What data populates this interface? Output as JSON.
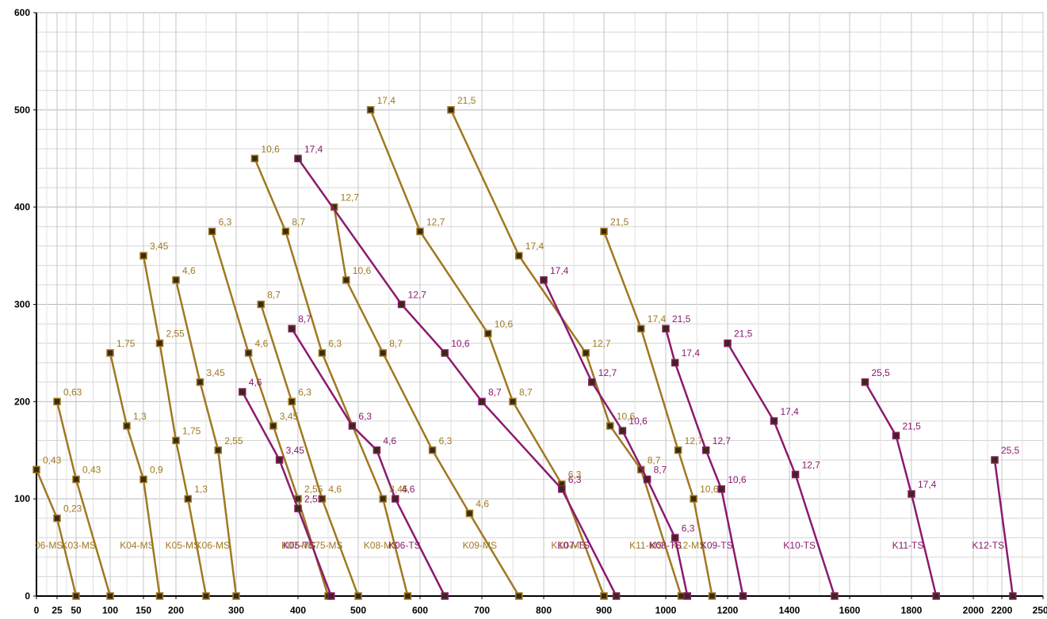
{
  "chart_data": {
    "type": "line",
    "title": "",
    "xlabel": "",
    "ylabel": "",
    "xlim": [
      0,
      2500
    ],
    "ylim": [
      0,
      600
    ],
    "x_tick_labels": [
      "0",
      "25",
      "50",
      "100",
      "150",
      "200",
      "300",
      "400",
      "500",
      "600",
      "700",
      "800",
      "900",
      "1000",
      "1200",
      "1400",
      "1600",
      "1800",
      "2000",
      "2200",
      "2500"
    ],
    "y_tick_labels": [
      "0",
      "100",
      "200",
      "300",
      "400",
      "500",
      "600"
    ],
    "grid": true,
    "colors": {
      "MS": "#a07820",
      "TS": "#8b1a6e"
    },
    "series": [
      {
        "name": "06-MS",
        "group": "MS",
        "points": [
          {
            "x": 0,
            "y": 130,
            "label": "0,43"
          },
          {
            "x": 25,
            "y": 80,
            "label": "0,23"
          },
          {
            "x": 50,
            "y": 0,
            "label": ""
          }
        ]
      },
      {
        "name": "K03-MS",
        "group": "MS",
        "points": [
          {
            "x": 25,
            "y": 200,
            "label": "0,63"
          },
          {
            "x": 50,
            "y": 120,
            "label": "0,43"
          },
          {
            "x": 100,
            "y": 0,
            "label": ""
          }
        ]
      },
      {
        "name": "K04-MS",
        "group": "MS",
        "points": [
          {
            "x": 100,
            "y": 250,
            "label": "1,75"
          },
          {
            "x": 125,
            "y": 175,
            "label": "1,3"
          },
          {
            "x": 150,
            "y": 120,
            "label": "0,9"
          },
          {
            "x": 175,
            "y": 0,
            "label": ""
          }
        ]
      },
      {
        "name": "K05-MS",
        "group": "MS",
        "points": [
          {
            "x": 150,
            "y": 350,
            "label": "3,45"
          },
          {
            "x": 175,
            "y": 260,
            "label": "2,55"
          },
          {
            "x": 200,
            "y": 160,
            "label": "1,75"
          },
          {
            "x": 220,
            "y": 100,
            "label": "1,3"
          },
          {
            "x": 250,
            "y": 0,
            "label": ""
          }
        ]
      },
      {
        "name": "K06-MS",
        "group": "MS",
        "points": [
          {
            "x": 200,
            "y": 325,
            "label": "4,6"
          },
          {
            "x": 240,
            "y": 220,
            "label": "3,45"
          },
          {
            "x": 270,
            "y": 150,
            "label": "2,55"
          },
          {
            "x": 300,
            "y": 0,
            "label": ""
          }
        ]
      },
      {
        "name": "K07-MS",
        "group": "MS",
        "points": [
          {
            "x": 260,
            "y": 375,
            "label": "6,3"
          },
          {
            "x": 320,
            "y": 250,
            "label": "4,6"
          },
          {
            "x": 360,
            "y": 175,
            "label": "3,45"
          },
          {
            "x": 400,
            "y": 100,
            "label": "2,55"
          },
          {
            "x": 450,
            "y": 0,
            "label": ""
          }
        ]
      },
      {
        "name": "K75-MS",
        "group": "MS",
        "points": [
          {
            "x": 340,
            "y": 300,
            "label": "8,7"
          },
          {
            "x": 390,
            "y": 200,
            "label": "6,3"
          },
          {
            "x": 440,
            "y": 100,
            "label": "4,6"
          },
          {
            "x": 500,
            "y": 0,
            "label": ""
          }
        ]
      },
      {
        "name": "K08-MS",
        "group": "MS",
        "points": [
          {
            "x": 330,
            "y": 450,
            "label": "10,6"
          },
          {
            "x": 380,
            "y": 375,
            "label": "8,7"
          },
          {
            "x": 440,
            "y": 250,
            "label": "6,3"
          },
          {
            "x": 540,
            "y": 100,
            "label": "3,45"
          },
          {
            "x": 580,
            "y": 0,
            "label": ""
          }
        ]
      },
      {
        "name": "K09-MS",
        "group": "MS",
        "points": [
          {
            "x": 460,
            "y": 400,
            "label": "12,7"
          },
          {
            "x": 480,
            "y": 325,
            "label": "10,6"
          },
          {
            "x": 540,
            "y": 250,
            "label": "8,7"
          },
          {
            "x": 620,
            "y": 150,
            "label": "6,3"
          },
          {
            "x": 680,
            "y": 85,
            "label": "4,6"
          },
          {
            "x": 760,
            "y": 0,
            "label": ""
          }
        ]
      },
      {
        "name": "K10-MS",
        "group": "MS",
        "points": [
          {
            "x": 520,
            "y": 500,
            "label": "17,4"
          },
          {
            "x": 600,
            "y": 375,
            "label": "12,7"
          },
          {
            "x": 710,
            "y": 270,
            "label": "10,6"
          },
          {
            "x": 750,
            "y": 200,
            "label": "8,7"
          },
          {
            "x": 830,
            "y": 115,
            "label": "6,3"
          },
          {
            "x": 900,
            "y": 0,
            "label": ""
          }
        ]
      },
      {
        "name": "K11-MS",
        "group": "MS",
        "points": [
          {
            "x": 650,
            "y": 500,
            "label": "21,5"
          },
          {
            "x": 760,
            "y": 350,
            "label": "17,4"
          },
          {
            "x": 870,
            "y": 250,
            "label": "12,7"
          },
          {
            "x": 910,
            "y": 175,
            "label": "10,6"
          },
          {
            "x": 960,
            "y": 130,
            "label": "8,7"
          },
          {
            "x": 1050,
            "y": 0,
            "label": ""
          }
        ]
      },
      {
        "name": "K12-MS",
        "group": "MS",
        "points": [
          {
            "x": 900,
            "y": 375,
            "label": "21,5"
          },
          {
            "x": 960,
            "y": 275,
            "label": "17,4"
          },
          {
            "x": 1040,
            "y": 150,
            "label": "12,7"
          },
          {
            "x": 1090,
            "y": 100,
            "label": "10,6"
          },
          {
            "x": 1150,
            "y": 0,
            "label": ""
          }
        ]
      },
      {
        "name": "K05-TS",
        "group": "TS",
        "points": [
          {
            "x": 310,
            "y": 210,
            "label": "4,6"
          },
          {
            "x": 370,
            "y": 140,
            "label": "3,45"
          },
          {
            "x": 400,
            "y": 90,
            "label": "2,55"
          },
          {
            "x": 455,
            "y": 0,
            "label": ""
          }
        ]
      },
      {
        "name": "K06-TS",
        "group": "TS",
        "points": [
          {
            "x": 390,
            "y": 275,
            "label": "8,7"
          },
          {
            "x": 490,
            "y": 175,
            "label": "6,3"
          },
          {
            "x": 530,
            "y": 150,
            "label": "4,6"
          },
          {
            "x": 560,
            "y": 100,
            "label": "4,6"
          },
          {
            "x": 640,
            "y": 0,
            "label": ""
          }
        ]
      },
      {
        "name": "K07-TS",
        "group": "TS",
        "points": [
          {
            "x": 400,
            "y": 450,
            "label": "17,4"
          },
          {
            "x": 570,
            "y": 300,
            "label": "12,7"
          },
          {
            "x": 640,
            "y": 250,
            "label": "10,6"
          },
          {
            "x": 700,
            "y": 200,
            "label": "8,7"
          },
          {
            "x": 830,
            "y": 110,
            "label": "6,3"
          },
          {
            "x": 920,
            "y": 0,
            "label": ""
          }
        ]
      },
      {
        "name": "K08-TS",
        "group": "TS",
        "points": [
          {
            "x": 800,
            "y": 325,
            "label": "17,4"
          },
          {
            "x": 880,
            "y": 220,
            "label": "12,7"
          },
          {
            "x": 930,
            "y": 170,
            "label": "10,6"
          },
          {
            "x": 970,
            "y": 120,
            "label": "8,7"
          },
          {
            "x": 1030,
            "y": 60,
            "label": "6,3"
          },
          {
            "x": 1070,
            "y": 0,
            "label": ""
          }
        ]
      },
      {
        "name": "K09-TS",
        "group": "TS",
        "points": [
          {
            "x": 1000,
            "y": 275,
            "label": "21,5"
          },
          {
            "x": 1030,
            "y": 240,
            "label": "17,4"
          },
          {
            "x": 1130,
            "y": 150,
            "label": "12,7"
          },
          {
            "x": 1180,
            "y": 110,
            "label": "10,6"
          },
          {
            "x": 1250,
            "y": 0,
            "label": ""
          }
        ]
      },
      {
        "name": "K10-TS",
        "group": "TS",
        "points": [
          {
            "x": 1200,
            "y": 260,
            "label": "21,5"
          },
          {
            "x": 1350,
            "y": 180,
            "label": "17,4"
          },
          {
            "x": 1420,
            "y": 125,
            "label": "12,7"
          },
          {
            "x": 1550,
            "y": 0,
            "label": ""
          }
        ]
      },
      {
        "name": "K11-TS",
        "group": "TS",
        "points": [
          {
            "x": 1650,
            "y": 220,
            "label": "25,5"
          },
          {
            "x": 1750,
            "y": 165,
            "label": "21,5"
          },
          {
            "x": 1800,
            "y": 105,
            "label": "17,4"
          },
          {
            "x": 1880,
            "y": 0,
            "label": ""
          }
        ]
      },
      {
        "name": "K12-TS",
        "group": "TS",
        "points": [
          {
            "x": 2150,
            "y": 140,
            "label": "25,5"
          },
          {
            "x": 2280,
            "y": 0,
            "label": ""
          }
        ]
      }
    ]
  }
}
